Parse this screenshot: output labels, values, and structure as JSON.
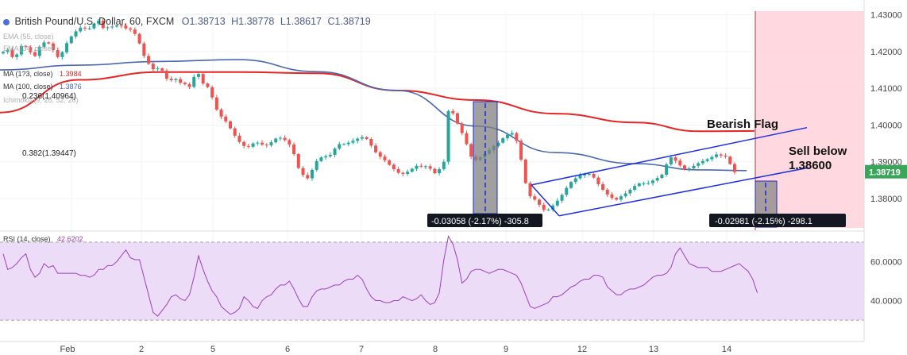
{
  "title": {
    "symbol": "British Pound/U.S. Dollar, 60, FXCM",
    "open": "O1.38713",
    "high": "H1.38778",
    "low": "L1.38617",
    "close": "C1.38719"
  },
  "legends": {
    "ema55": "EMA (55, close)",
    "ema34": "EMA (34, close)",
    "ma_a_label": "MA (1?3, close)",
    "ma_a_value": "1.3984",
    "ma100_label": "MA (100, close)",
    "ma100_value": "1.3876",
    "ichimoku": "Ichimoku (9, 26, 52, 26)"
  },
  "fib": {
    "f236": "0.236(1.40964)",
    "f382": "0.382(1.39447)"
  },
  "annotations": {
    "bearish_flag": "Bearish Flag",
    "sell_line1": "Sell below",
    "sell_line2": "1.38600",
    "measure1": "-0.03058 (-2.17%) -305.8",
    "measure2": "-0.02981 (-2.15%) -298.1"
  },
  "rsi": {
    "label": "RSI (14, close)",
    "value": "42.6202"
  },
  "price_axis": {
    "ticks": [
      "1.43000",
      "1.42000",
      "1.41000",
      "1.40000",
      "1.39000",
      "1.38000"
    ],
    "current": "1.38719"
  },
  "rsi_axis": {
    "ticks": [
      "60.0000",
      "40.0000"
    ]
  },
  "x_axis": {
    "labels": [
      "Feb",
      "2",
      "5",
      "6",
      "7",
      "8",
      "9",
      "12",
      "13",
      "14"
    ]
  },
  "colors": {
    "bull": "#26a69a",
    "bear": "#ef5350",
    "ma_red": "#e52525",
    "ma_blue": "#4a68b0",
    "channel": "#1f2fe0",
    "rsi_line": "#9c3fbf",
    "rsi_band": "#ecdcf8",
    "sell_zone": "#ffd5db",
    "current_tag": "#3aa65a"
  },
  "chart_data": {
    "type": "candlestick",
    "symbol": "GBPUSD",
    "timeframe": "60",
    "price_range": [
      1.372,
      1.431
    ],
    "rsi_range": [
      28,
      72
    ],
    "candles_close": [
      1.4199,
      1.4205,
      1.4185,
      1.4192,
      1.4215,
      1.4212,
      1.4198,
      1.4188,
      1.4213,
      1.4225,
      1.4222,
      1.4204,
      1.4185,
      1.4198,
      1.4223,
      1.4241,
      1.4255,
      1.4265,
      1.4263,
      1.4263,
      1.4276,
      1.4284,
      1.4264,
      1.4266,
      1.4268,
      1.4271,
      1.427,
      1.4263,
      1.426,
      1.4248,
      1.4222,
      1.4188,
      1.4167,
      1.4152,
      1.4154,
      1.4148,
      1.4126,
      1.4122,
      1.4125,
      1.4115,
      1.4111,
      1.4104,
      1.4131,
      1.4139,
      1.4113,
      1.4103,
      1.4075,
      1.4042,
      1.4023,
      1.401,
      1.3991,
      1.3971,
      1.3954,
      1.3943,
      1.3941,
      1.395,
      1.3952,
      1.3947,
      1.3945,
      1.3953,
      1.3963,
      1.3965,
      1.3959,
      1.3947,
      1.3921,
      1.3883,
      1.3864,
      1.3855,
      1.3878,
      1.3902,
      1.3912,
      1.3915,
      1.3919,
      1.3936,
      1.3948,
      1.3948,
      1.3952,
      1.3957,
      1.3963,
      1.3967,
      1.3962,
      1.3944,
      1.3926,
      1.3914,
      1.3904,
      1.3892,
      1.388,
      1.387,
      1.3867,
      1.3873,
      1.3881,
      1.3889,
      1.3887,
      1.3888,
      1.3881,
      1.3869,
      1.388,
      1.39,
      1.4038,
      1.4032,
      1.4004,
      1.3978,
      1.3948,
      1.3914,
      1.3905,
      1.3912,
      1.3922,
      1.3932,
      1.3943,
      1.3952,
      1.3964,
      1.3974,
      1.3978,
      1.3957,
      1.3906,
      1.3842,
      1.3806,
      1.3797,
      1.3783,
      1.3769,
      1.377,
      1.3781,
      1.3794,
      1.381,
      1.3829,
      1.3845,
      1.3855,
      1.3863,
      1.3866,
      1.3867,
      1.3857,
      1.3839,
      1.3824,
      1.3811,
      1.3802,
      1.3797,
      1.3806,
      1.3814,
      1.3824,
      1.3834,
      1.3841,
      1.3841,
      1.3842,
      1.3849,
      1.3856,
      1.3865,
      1.3893,
      1.3912,
      1.3903,
      1.389,
      1.3879,
      1.3882,
      1.3889,
      1.3896,
      1.3902,
      1.3907,
      1.3913,
      1.392,
      1.3917,
      1.3914,
      1.3894,
      1.3872
    ],
    "ma_red": [
      [
        0,
        1.4034
      ],
      [
        100,
        1.4123
      ],
      [
        200,
        1.4144
      ],
      [
        300,
        1.4144
      ],
      [
        400,
        1.4141
      ],
      [
        500,
        1.4094
      ],
      [
        600,
        1.4068
      ],
      [
        700,
        1.4031
      ],
      [
        800,
        1.4007
      ],
      [
        880,
        1.3983
      ],
      [
        950,
        1.3984
      ]
    ],
    "ma_blue": [
      [
        0,
        1.415
      ],
      [
        100,
        1.4163
      ],
      [
        200,
        1.4173
      ],
      [
        300,
        1.4178
      ],
      [
        400,
        1.4145
      ],
      [
        500,
        1.4094
      ],
      [
        600,
        1.3997
      ],
      [
        700,
        1.3925
      ],
      [
        800,
        1.3895
      ],
      [
        880,
        1.3878
      ],
      [
        940,
        1.3876
      ]
    ],
    "rsi_values": [
      64,
      56,
      57,
      59,
      62,
      64,
      56,
      52,
      54,
      59,
      57,
      58,
      54,
      54,
      54,
      54,
      54,
      53,
      53,
      52,
      53,
      56,
      56,
      58,
      58,
      60,
      63,
      66,
      62,
      61,
      61,
      52,
      43,
      34,
      32,
      35,
      38,
      42,
      43,
      41,
      40,
      43,
      52,
      63,
      56,
      50,
      45,
      42,
      37,
      35,
      33,
      34,
      36,
      42,
      40,
      37,
      36,
      40,
      42,
      43,
      46,
      48,
      48,
      50,
      46,
      41,
      37,
      37,
      42,
      45,
      46,
      46,
      47,
      48,
      48,
      50,
      51,
      51,
      53,
      51,
      46,
      42,
      40,
      40,
      39,
      39,
      40,
      40,
      42,
      41,
      40,
      41,
      43,
      40,
      38,
      39,
      44,
      61,
      73,
      69,
      61,
      49,
      51,
      55,
      56,
      56,
      55,
      54,
      55,
      56,
      56,
      55,
      54,
      53,
      49,
      43,
      37,
      36,
      37,
      38,
      39,
      42,
      42,
      43,
      45,
      47,
      48,
      50,
      51,
      51,
      53,
      53,
      52,
      47,
      45,
      43,
      43,
      45,
      46,
      46,
      47,
      48,
      50,
      52,
      53,
      53,
      54,
      57,
      64,
      67,
      63,
      59,
      58,
      57,
      57,
      57,
      55,
      55,
      55,
      56,
      57,
      58,
      59,
      57,
      55,
      51,
      44
    ],
    "rsi_levels": [
      70,
      30
    ],
    "channel_upper": [
      [
        1.3837,
        1.3993
      ]
    ],
    "channel_lower": [
      [
        1.3753,
        1.3884
      ]
    ],
    "sell_level": 1.386,
    "current_price": 1.38719,
    "rsi_current": 42.6202
  }
}
